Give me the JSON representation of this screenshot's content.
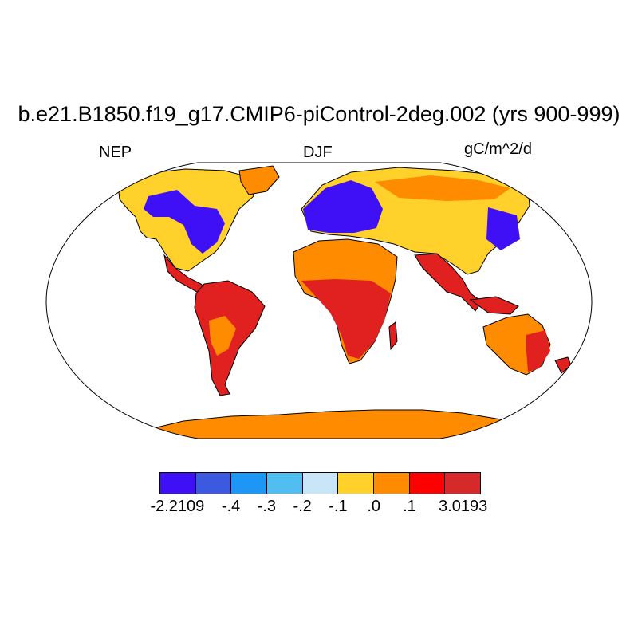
{
  "title": "b.e21.B1850.f19_g17.CMIP6-piControl-2deg.002 (yrs 900-999)",
  "left_label": "NEP",
  "center_label": "DJF",
  "right_label": "gC/m^2/d",
  "colorbar": {
    "colors": [
      "#3f10f5",
      "#3c5ae0",
      "#1e96f5",
      "#50bef0",
      "#c8e6f8",
      "#ffd12a",
      "#ff8c00",
      "#ff0000",
      "#d62a2a"
    ],
    "labels": [
      "-2.2109",
      "-.4",
      "-.3",
      "-.2",
      "-.1",
      ".0",
      ".1",
      "3.0193"
    ]
  },
  "map_colors": {
    "ocean": "#ffffff",
    "antarctica": "#ff8c00",
    "boreal": "#3f10f5",
    "temperate": "#ffd12a",
    "dry": "#ff8c00",
    "tropics": "#e12020",
    "coast": "#000000"
  }
}
